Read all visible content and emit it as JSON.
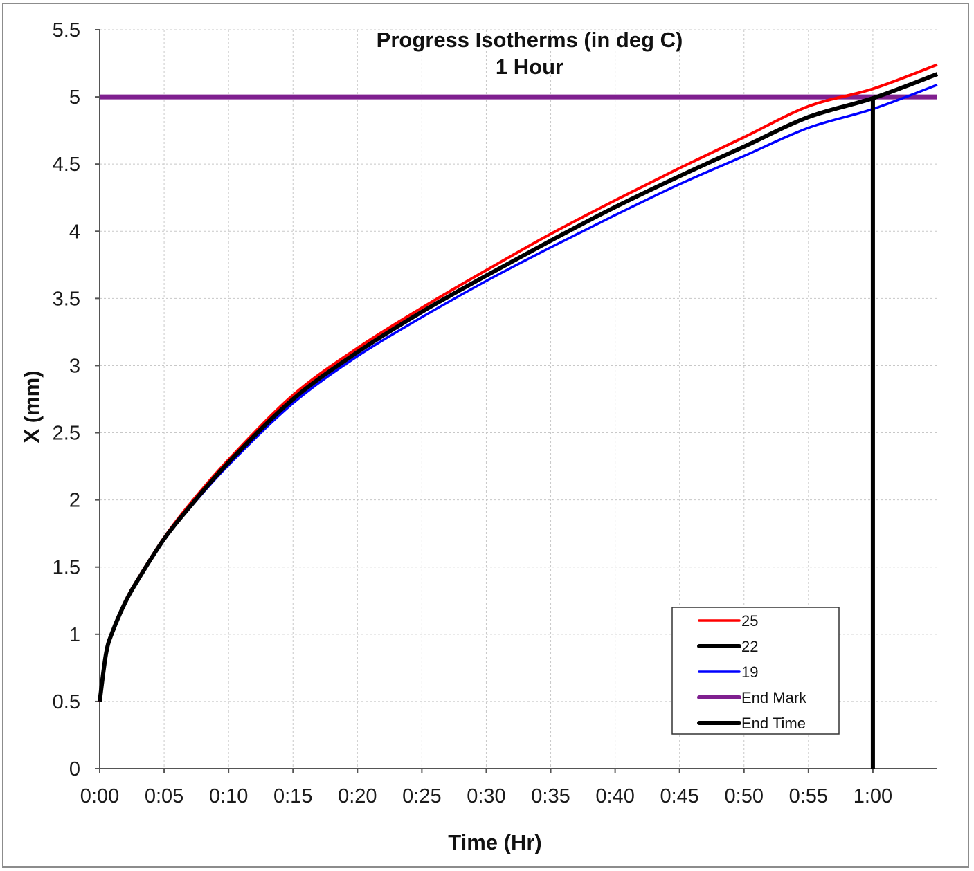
{
  "chart_data": {
    "type": "line",
    "title": "Progress Isotherms (in deg C)",
    "subtitle": "1 Hour",
    "xlabel": "Time (Hr)",
    "ylabel": "X (mm)",
    "x_unit": "minutes",
    "xlim": [
      0,
      65
    ],
    "ylim": [
      0,
      5.5
    ],
    "x_ticks": [
      0,
      5,
      10,
      15,
      20,
      25,
      30,
      35,
      40,
      45,
      50,
      55,
      60
    ],
    "x_tick_labels": [
      "0:00",
      "0:05",
      "0:10",
      "0:15",
      "0:20",
      "0:25",
      "0:30",
      "0:35",
      "0:40",
      "0:45",
      "0:50",
      "0:55",
      "1:00"
    ],
    "y_ticks": [
      0,
      0.5,
      1,
      1.5,
      2,
      2.5,
      3,
      3.5,
      4,
      4.5,
      5,
      5.5
    ],
    "y_tick_labels": [
      "0",
      "0.5",
      "1",
      "1.5",
      "2",
      "2.5",
      "3",
      "3.5",
      "4",
      "4.5",
      "5",
      "5.5"
    ],
    "grid": true,
    "legend_position": "bottom-right",
    "x": [
      0,
      0.5,
      1,
      2,
      3,
      5,
      7,
      10,
      15,
      20,
      25,
      30,
      35,
      40,
      45,
      50,
      55,
      60,
      65
    ],
    "series": [
      {
        "name": "25",
        "color": "#ff0000",
        "values": [
          0.5,
          0.87,
          1.03,
          1.25,
          1.42,
          1.72,
          1.97,
          2.3,
          2.78,
          3.13,
          3.43,
          3.71,
          3.98,
          4.23,
          4.47,
          4.7,
          4.93,
          5.06,
          5.24
        ]
      },
      {
        "name": "22",
        "color": "#000000",
        "values": [
          0.5,
          0.86,
          1.02,
          1.24,
          1.41,
          1.71,
          1.95,
          2.28,
          2.75,
          3.1,
          3.4,
          3.67,
          3.93,
          4.18,
          4.41,
          4.63,
          4.85,
          4.99,
          5.17
        ]
      },
      {
        "name": "19",
        "color": "#0000ff",
        "values": [
          0.5,
          0.85,
          1.01,
          1.23,
          1.4,
          1.7,
          1.94,
          2.26,
          2.72,
          3.07,
          3.36,
          3.63,
          3.88,
          4.12,
          4.35,
          4.56,
          4.77,
          4.91,
          5.09
        ]
      }
    ],
    "end_mark": {
      "name": "End Mark",
      "color": "#7f1f8f",
      "y": 5
    },
    "end_time": {
      "name": "End Time",
      "color": "#000000",
      "x": 60,
      "y_top": 5
    }
  }
}
